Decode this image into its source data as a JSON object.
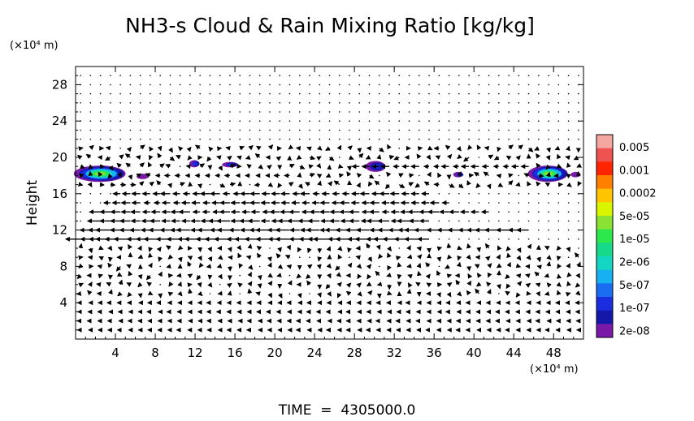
{
  "chart_data": {
    "type": "heatmap",
    "title": "NH3-s Cloud & Rain Mixing Ratio [kg/kg]",
    "ylabel": "Height",
    "y_unit_label": "(×10⁴ m)",
    "x_unit_label": "(×10⁴ m)",
    "footer": "TIME  =  4305000.0",
    "xlim": [
      0,
      51
    ],
    "ylim": [
      0,
      30
    ],
    "x_ticks": [
      4,
      8,
      12,
      16,
      20,
      24,
      28,
      32,
      36,
      40,
      44,
      48
    ],
    "y_ticks": [
      4,
      8,
      12,
      16,
      20,
      24,
      28
    ],
    "colorbar": {
      "labels": [
        "0.005",
        "0.001",
        "0.0002",
        "5e-05",
        "1e-05",
        "2e-06",
        "5e-07",
        "1e-07",
        "2e-08"
      ],
      "colors": [
        "#f4a6a0",
        "#ef5350",
        "#ff2400",
        "#ff7f00",
        "#ffc400",
        "#d9f500",
        "#8ae234",
        "#2de84d",
        "#16d98a",
        "#14d6c2",
        "#17b0f0",
        "#1a6cf0",
        "#1a2ee0",
        "#1418a8",
        "#7a18a8"
      ]
    },
    "clouds": [
      {
        "x": 2.5,
        "y": 18.2,
        "rx": 2.6,
        "ry": 0.9,
        "level": "1e-05"
      },
      {
        "x": 6.8,
        "y": 17.9,
        "rx": 0.6,
        "ry": 0.3,
        "level": "2e-08"
      },
      {
        "x": 12.0,
        "y": 19.3,
        "rx": 0.5,
        "ry": 0.4,
        "level": "1e-07"
      },
      {
        "x": 15.6,
        "y": 19.2,
        "rx": 0.8,
        "ry": 0.3,
        "level": "1e-07"
      },
      {
        "x": 30.2,
        "y": 19.0,
        "rx": 1.0,
        "ry": 0.6,
        "level": "1e-07"
      },
      {
        "x": 38.5,
        "y": 18.1,
        "rx": 0.5,
        "ry": 0.3,
        "level": "1e-07"
      },
      {
        "x": 47.5,
        "y": 18.2,
        "rx": 2.0,
        "ry": 0.9,
        "level": "1e-05"
      },
      {
        "x": 50.3,
        "y": 18.1,
        "rx": 0.5,
        "ry": 0.3,
        "level": "2e-08"
      }
    ],
    "jets": [
      {
        "y": 11.0,
        "x0": 0.3,
        "x1": 35.5,
        "speed": 1.0
      },
      {
        "y": 12.0,
        "x0": 1.5,
        "x1": 45.5,
        "speed": 0.9
      },
      {
        "y": 13.0,
        "x0": 2.0,
        "x1": 36.0,
        "speed": 0.8
      },
      {
        "y": 14.0,
        "x0": 2.0,
        "x1": 42.0,
        "speed": 0.7
      },
      {
        "y": 15.0,
        "x0": 3.0,
        "x1": 38.0,
        "speed": 0.6
      },
      {
        "y": 16.0,
        "x0": 4.5,
        "x1": 36.0,
        "speed": 0.6
      },
      {
        "y": 18.0,
        "x0": 8.0,
        "x1": 22.0,
        "speed": 0.35
      },
      {
        "y": 19.0,
        "x0": 28.0,
        "x1": 46.0,
        "speed": 0.5
      }
    ]
  }
}
